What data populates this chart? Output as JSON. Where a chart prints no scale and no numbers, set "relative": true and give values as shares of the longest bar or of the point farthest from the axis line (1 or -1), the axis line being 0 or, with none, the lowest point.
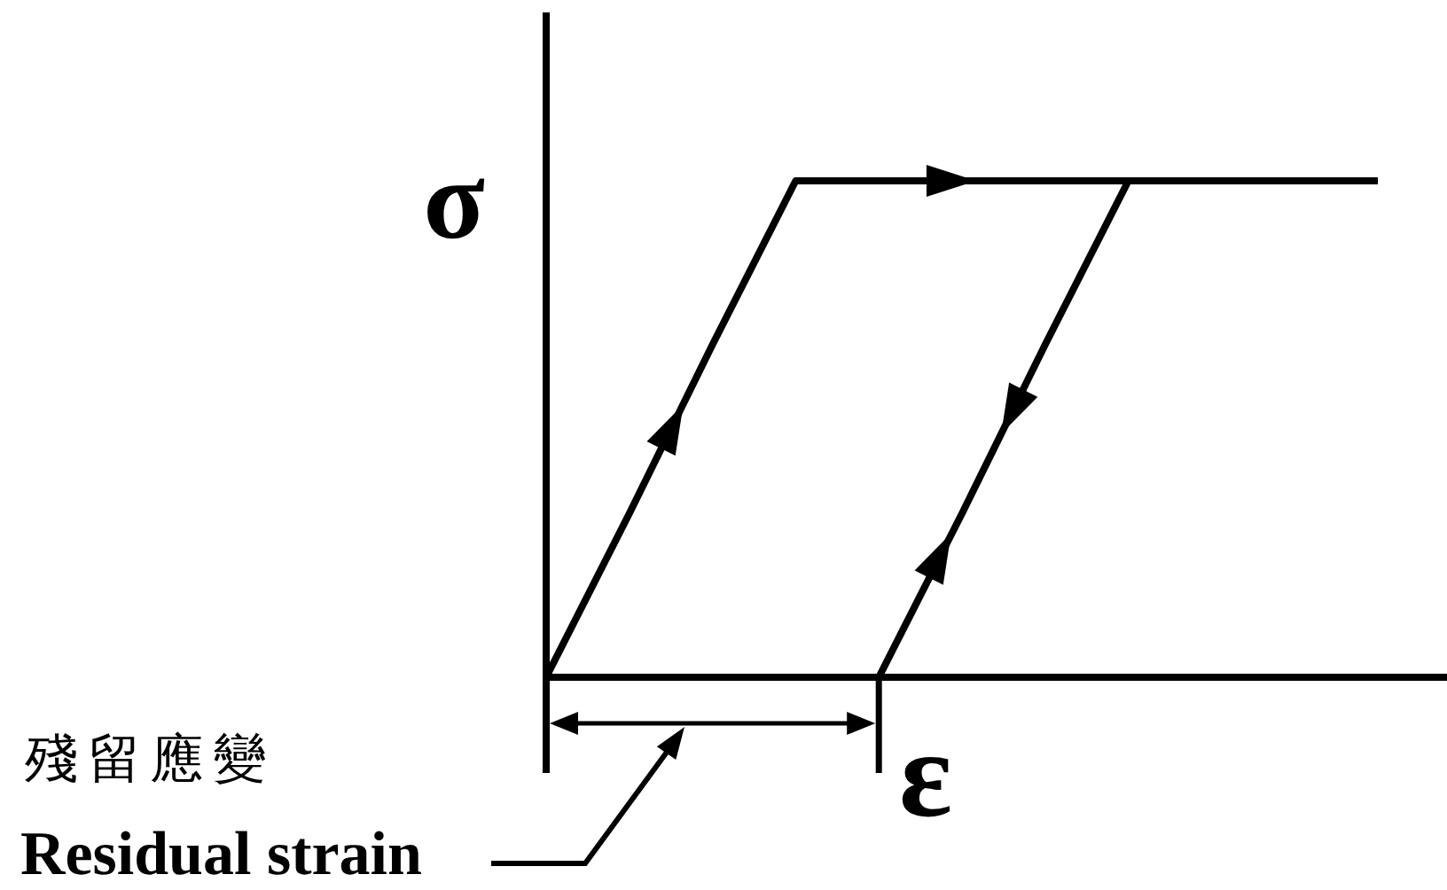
{
  "chart_data": {
    "type": "line",
    "relative": true,
    "xlabel": "ε",
    "ylabel": "σ",
    "categories": [
      null,
      null,
      null,
      null,
      null,
      null,
      null,
      null,
      null,
      null,
      null
    ],
    "series": [
      {
        "color": "#000000",
        "values": [
          0,
          0.33,
          0.67,
          1,
          1,
          1,
          1,
          1,
          1,
          1,
          1
        ]
      },
      {
        "color": "#000000",
        "values": [
          null,
          null,
          null,
          null,
          0,
          0.33,
          0.67,
          1,
          null,
          null,
          null
        ]
      }
    ],
    "annotations": [
      "殘留應變",
      "Residual strain"
    ]
  }
}
